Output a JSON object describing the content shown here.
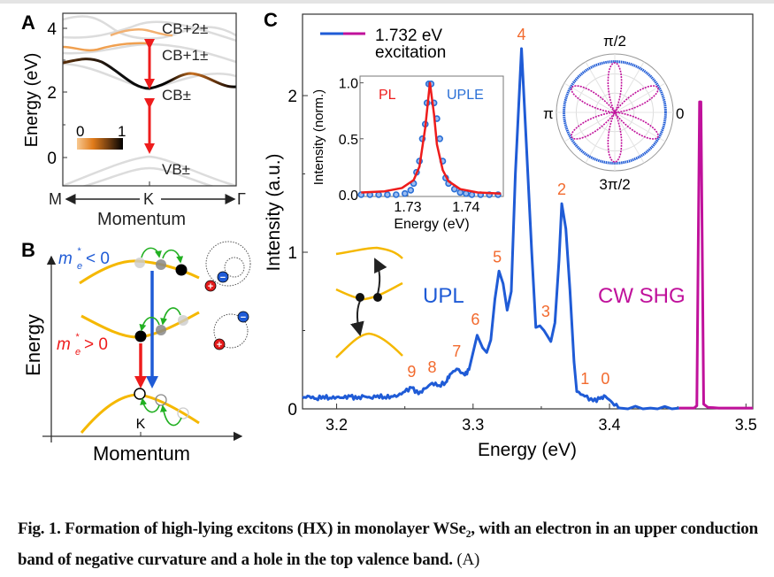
{
  "panel_a": {
    "label": "A",
    "ylabel": "Energy (eV)",
    "yticks": [
      "4",
      "2",
      "0"
    ],
    "band_labels": [
      "CB+2±",
      "CB+1±",
      "CB±",
      "VB±"
    ],
    "colorbar": {
      "min_label": "0",
      "max_label": "1",
      "colors": [
        "#f6b26b",
        "#e07b1a",
        "#6b3a10",
        "#000000"
      ]
    },
    "x_points": [
      "M",
      "K",
      "Γ"
    ],
    "xlabel": "Momentum",
    "colors": {
      "arrow": "#ee1c1c",
      "band_grey": "#d9d9d9",
      "cb": "#111111",
      "cb1": "#f0a050",
      "cb2": "#f2b070"
    }
  },
  "panel_b": {
    "label": "B",
    "ylabel": "Energy",
    "xlabel": "Momentum",
    "k_label": "K",
    "neg_mass": {
      "symbol": "m",
      "sub": "e",
      "sup": "*",
      "relation": "< 0"
    },
    "pos_mass": {
      "symbol": "m",
      "sub": "e",
      "sup": "*",
      "relation": "> 0"
    },
    "charges": {
      "electron": "−",
      "hole": "+"
    },
    "colors": {
      "band": "#f5b800",
      "blue": "#1f5bd6",
      "red": "#ee1c1c",
      "green": "#22b022"
    }
  },
  "panel_c": {
    "label": "C",
    "legend": {
      "line1": "1.732 eV",
      "line2": "excitation"
    },
    "upl_label": "UPL",
    "shg_label": "CW SHG",
    "colors": {
      "upl": "#1f5bd6",
      "shg": "#c0119b",
      "peak_labels": "#f26a2e",
      "pl": "#ee1c1c",
      "uple": "#2a6fd6"
    }
  },
  "chart_data": [
    {
      "type": "line",
      "xlabel": "Energy (eV)",
      "ylabel": "Intensity (a.u.)",
      "xlim": [
        3.175,
        3.505
      ],
      "ylim": [
        0,
        2.52
      ],
      "xticks": [
        "3.2",
        "3.3",
        "3.4",
        "3.5"
      ],
      "xtick_values": [
        3.2,
        3.3,
        3.4,
        3.5
      ],
      "yticks": [
        "0",
        "1",
        "2"
      ],
      "ytick_values": [
        0,
        1,
        2
      ],
      "grid": false,
      "series": [
        {
          "name": "UPL",
          "points": [
            [
              3.175,
              0.07
            ],
            [
              3.18,
              0.08
            ],
            [
              3.185,
              0.065
            ],
            [
              3.19,
              0.08
            ],
            [
              3.195,
              0.07
            ],
            [
              3.2,
              0.075
            ],
            [
              3.205,
              0.07
            ],
            [
              3.21,
              0.08
            ],
            [
              3.215,
              0.065
            ],
            [
              3.22,
              0.08
            ],
            [
              3.225,
              0.07
            ],
            [
              3.23,
              0.085
            ],
            [
              3.235,
              0.075
            ],
            [
              3.24,
              0.08
            ],
            [
              3.245,
              0.085
            ],
            [
              3.25,
              0.11
            ],
            [
              3.255,
              0.135
            ],
            [
              3.26,
              0.095
            ],
            [
              3.265,
              0.13
            ],
            [
              3.27,
              0.165
            ],
            [
              3.275,
              0.15
            ],
            [
              3.28,
              0.17
            ],
            [
              3.283,
              0.22
            ],
            [
              3.288,
              0.255
            ],
            [
              3.294,
              0.215
            ],
            [
              3.297,
              0.25
            ],
            [
              3.303,
              0.47
            ],
            [
              3.307,
              0.39
            ],
            [
              3.31,
              0.36
            ],
            [
              3.313,
              0.44
            ],
            [
              3.316,
              0.7
            ],
            [
              3.319,
              0.88
            ],
            [
              3.322,
              0.8
            ],
            [
              3.325,
              0.63
            ],
            [
              3.328,
              0.75
            ],
            [
              3.331,
              1.5
            ],
            [
              3.3355,
              2.3
            ],
            [
              3.339,
              1.7
            ],
            [
              3.343,
              1.0
            ],
            [
              3.346,
              0.52
            ],
            [
              3.349,
              0.53
            ],
            [
              3.352,
              0.5
            ],
            [
              3.357,
              0.43
            ],
            [
              3.36,
              0.55
            ],
            [
              3.363,
              0.95
            ],
            [
              3.365,
              1.31
            ],
            [
              3.368,
              1.15
            ],
            [
              3.371,
              0.76
            ],
            [
              3.374,
              0.3
            ],
            [
              3.376,
              0.11
            ],
            [
              3.382,
              0.08
            ],
            [
              3.388,
              0.05
            ],
            [
              3.393,
              0.065
            ],
            [
              3.397,
              0.08
            ],
            [
              3.402,
              0.04
            ],
            [
              3.408,
              0.005
            ],
            [
              3.43,
              0.005
            ],
            [
              3.451,
              0.005
            ]
          ]
        },
        {
          "name": "CW SHG",
          "points": [
            [
              3.451,
              0.005
            ],
            [
              3.462,
              0.005
            ],
            [
              3.464,
              0.02
            ],
            [
              3.465,
              1.0
            ],
            [
              3.466,
              1.96
            ],
            [
              3.467,
              1.96
            ],
            [
              3.468,
              1.0
            ],
            [
              3.469,
              0.03
            ],
            [
              3.472,
              0.01
            ],
            [
              3.48,
              0.005
            ],
            [
              3.505,
              0.005
            ]
          ]
        }
      ],
      "peak_labels": [
        {
          "text": "9",
          "x": 3.255,
          "y": 0.135
        },
        {
          "text": "8",
          "x": 3.27,
          "y": 0.165
        },
        {
          "text": "7",
          "x": 3.288,
          "y": 0.255
        },
        {
          "text": "6",
          "x": 3.303,
          "y": 0.47
        },
        {
          "text": "5",
          "x": 3.319,
          "y": 0.88
        },
        {
          "text": "4",
          "x": 3.3355,
          "y": 2.3
        },
        {
          "text": "3",
          "x": 3.35,
          "y": 0.53
        },
        {
          "text": "2",
          "x": 3.365,
          "y": 1.31
        },
        {
          "text": "1",
          "x": 3.382,
          "y": 0.08
        },
        {
          "text": "0",
          "x": 3.397,
          "y": 0.08
        }
      ]
    },
    {
      "type": "line",
      "xlabel": "Energy (eV)",
      "ylabel": "Intensity (norm.)",
      "xlim": [
        1.7218,
        1.7464
      ],
      "ylim": [
        0,
        1.06
      ],
      "xticks": [
        "1.73",
        "1.74"
      ],
      "xtick_values": [
        1.73,
        1.74
      ],
      "yticks": [
        "0.0",
        "0.5",
        "1.0"
      ],
      "ytick_values": [
        0,
        0.5,
        1.0
      ],
      "series": [
        {
          "name": "PL",
          "style": "line",
          "points": [
            [
              1.722,
              0.02
            ],
            [
              1.726,
              0.03
            ],
            [
              1.729,
              0.06
            ],
            [
              1.731,
              0.13
            ],
            [
              1.732,
              0.25
            ],
            [
              1.733,
              0.6
            ],
            [
              1.7338,
              1.0
            ],
            [
              1.7345,
              0.72
            ],
            [
              1.735,
              0.45
            ],
            [
              1.736,
              0.22
            ],
            [
              1.737,
              0.12
            ],
            [
              1.739,
              0.05
            ],
            [
              1.742,
              0.02
            ],
            [
              1.746,
              0.01
            ]
          ]
        },
        {
          "name": "UPLE",
          "style": "markers",
          "points": [
            [
              1.722,
              0
            ],
            [
              1.7235,
              0
            ],
            [
              1.725,
              0
            ],
            [
              1.7265,
              0
            ],
            [
              1.728,
              0
            ],
            [
              1.7295,
              0.01
            ],
            [
              1.7305,
              0.04
            ],
            [
              1.731,
              0.1
            ],
            [
              1.7315,
              0.2
            ],
            [
              1.732,
              0.3
            ],
            [
              1.7325,
              0.5
            ],
            [
              1.733,
              0.63
            ],
            [
              1.7333,
              0.82
            ],
            [
              1.7336,
              0.99
            ],
            [
              1.734,
              0.99
            ],
            [
              1.7345,
              0.82
            ],
            [
              1.735,
              0.68
            ],
            [
              1.7355,
              0.5
            ],
            [
              1.736,
              0.3
            ],
            [
              1.7365,
              0.15
            ],
            [
              1.737,
              0.1
            ],
            [
              1.738,
              0.05
            ],
            [
              1.739,
              0.02
            ],
            [
              1.74,
              0.01
            ],
            [
              1.741,
              0
            ],
            [
              1.7425,
              0
            ],
            [
              1.744,
              0
            ],
            [
              1.7455,
              0
            ]
          ]
        }
      ]
    },
    {
      "type": "polar",
      "angle_labels": [
        "0",
        "π/2",
        "π",
        "3π/2"
      ],
      "series": [
        {
          "name": "UPL",
          "form": "isotropic",
          "r": 0.87
        },
        {
          "name": "CW SHG",
          "form": "sin^2(3θ)",
          "r": 0.85
        }
      ]
    }
  ],
  "caption": {
    "text": "Fig. 1. Formation of high-lying excitons (HX) in monolayer WSe₂, with an electron in an upper conduction band of negative curvature and a hole in the top valence band.",
    "ref": "(A)"
  }
}
